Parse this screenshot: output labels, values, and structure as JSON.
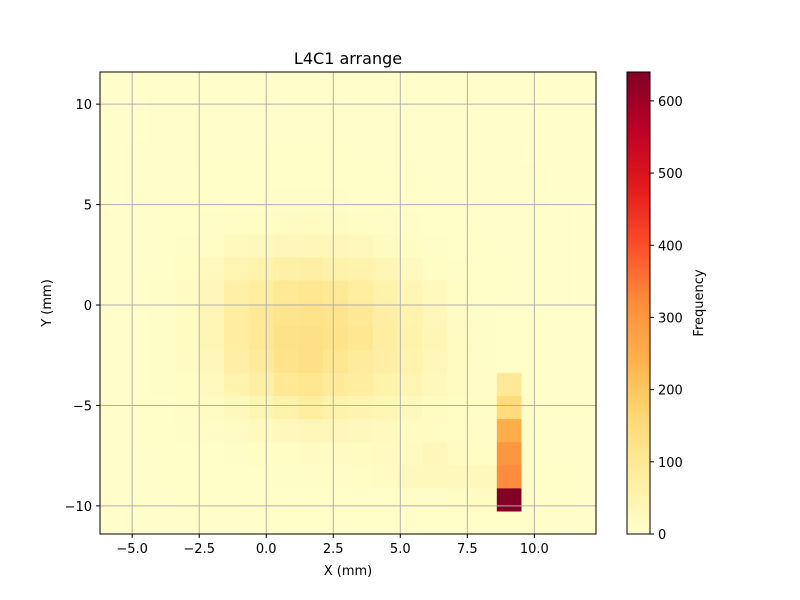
{
  "chart_data": {
    "type": "heatmap",
    "title": "L4C1 arrange",
    "xlabel": "X (mm)",
    "ylabel": "Y (mm)",
    "colorbar_label": "Frequency",
    "xlim": [
      -6.2,
      12.3
    ],
    "ylim": [
      -11.4,
      11.6
    ],
    "xticks": [
      -5.0,
      -2.5,
      0.0,
      2.5,
      5.0,
      7.5,
      10.0
    ],
    "xtick_labels": [
      "−5.0",
      "−2.5",
      "0.0",
      "2.5",
      "5.0",
      "7.5",
      "10.0"
    ],
    "yticks": [
      -10,
      -5,
      0,
      5,
      10
    ],
    "ytick_labels": [
      "−10",
      "−5",
      "0",
      "5",
      "10"
    ],
    "colorbar_range": [
      0,
      640
    ],
    "colorbar_ticks": [
      0,
      100,
      200,
      300,
      400,
      500,
      600
    ],
    "colormap": "YlOrRd",
    "grid": true,
    "bin_x_edges": [
      -6.2,
      -5.28,
      -4.35,
      -3.42,
      -2.5,
      -1.58,
      -0.65,
      0.27,
      1.2,
      2.12,
      3.05,
      3.97,
      4.9,
      5.82,
      6.75,
      7.68,
      8.6,
      9.52,
      10.45,
      11.38,
      12.3
    ],
    "bin_y_edges": [
      -11.4,
      -10.25,
      -9.1,
      -7.95,
      -6.8,
      -5.65,
      -4.5,
      -3.35,
      -2.2,
      -1.05,
      0.1,
      1.25,
      2.4,
      3.55,
      4.7,
      5.85,
      7.0,
      8.15,
      9.3,
      10.45,
      11.6
    ],
    "values": [
      [
        2,
        3,
        4,
        4,
        4,
        4,
        5,
        5,
        5,
        5,
        5,
        5,
        5,
        5,
        5,
        5,
        8,
        6,
        4,
        3
      ],
      [
        3,
        4,
        4,
        5,
        5,
        6,
        6,
        6,
        6,
        7,
        7,
        8,
        10,
        10,
        12,
        16,
        640,
        8,
        5,
        4
      ],
      [
        3,
        4,
        5,
        6,
        6,
        7,
        8,
        9,
        10,
        12,
        14,
        18,
        30,
        30,
        30,
        30,
        320,
        8,
        5,
        3
      ],
      [
        3,
        4,
        6,
        7,
        8,
        10,
        14,
        15,
        16,
        18,
        20,
        22,
        24,
        35,
        20,
        15,
        300,
        7,
        4,
        3
      ],
      [
        3,
        5,
        7,
        9,
        12,
        18,
        25,
        30,
        35,
        35,
        30,
        25,
        20,
        18,
        15,
        12,
        250,
        6,
        4,
        3
      ],
      [
        3,
        5,
        8,
        12,
        18,
        30,
        45,
        60,
        80,
        60,
        50,
        40,
        30,
        20,
        15,
        10,
        150,
        6,
        4,
        3
      ],
      [
        3,
        5,
        9,
        14,
        25,
        55,
        70,
        100,
        110,
        90,
        80,
        60,
        45,
        30,
        20,
        12,
        100,
        5,
        4,
        3
      ],
      [
        3,
        5,
        10,
        18,
        35,
        70,
        90,
        120,
        130,
        110,
        90,
        75,
        55,
        35,
        20,
        10,
        8,
        5,
        4,
        3
      ],
      [
        3,
        5,
        10,
        20,
        40,
        80,
        100,
        125,
        130,
        120,
        110,
        80,
        60,
        40,
        20,
        10,
        6,
        5,
        3,
        3
      ],
      [
        3,
        5,
        10,
        20,
        40,
        80,
        95,
        115,
        120,
        115,
        100,
        75,
        55,
        35,
        18,
        9,
        6,
        5,
        3,
        3
      ],
      [
        3,
        5,
        9,
        18,
        35,
        65,
        80,
        100,
        110,
        100,
        80,
        60,
        40,
        25,
        14,
        8,
        5,
        4,
        3,
        2
      ],
      [
        3,
        4,
        8,
        14,
        25,
        45,
        55,
        65,
        70,
        60,
        55,
        40,
        25,
        15,
        10,
        6,
        5,
        4,
        3,
        2
      ],
      [
        3,
        4,
        6,
        10,
        15,
        25,
        30,
        35,
        38,
        35,
        30,
        22,
        15,
        10,
        6,
        5,
        4,
        3,
        3,
        2
      ],
      [
        3,
        4,
        5,
        7,
        9,
        12,
        15,
        18,
        20,
        18,
        15,
        12,
        9,
        7,
        5,
        4,
        4,
        3,
        3,
        2
      ],
      [
        2,
        3,
        4,
        5,
        6,
        7,
        8,
        9,
        10,
        9,
        8,
        7,
        6,
        5,
        4,
        4,
        3,
        3,
        2,
        2
      ],
      [
        2,
        3,
        4,
        4,
        5,
        5,
        6,
        6,
        6,
        6,
        5,
        5,
        5,
        4,
        4,
        3,
        3,
        3,
        2,
        2
      ],
      [
        2,
        3,
        3,
        4,
        4,
        4,
        5,
        5,
        5,
        5,
        4,
        4,
        4,
        4,
        3,
        3,
        3,
        2,
        2,
        2
      ],
      [
        2,
        2,
        3,
        3,
        4,
        4,
        4,
        4,
        4,
        4,
        4,
        4,
        3,
        3,
        3,
        3,
        2,
        2,
        2,
        2
      ],
      [
        2,
        2,
        3,
        3,
        3,
        3,
        3,
        3,
        3,
        3,
        3,
        3,
        3,
        3,
        3,
        2,
        2,
        2,
        2,
        2
      ],
      [
        2,
        2,
        2,
        2,
        3,
        3,
        3,
        3,
        3,
        3,
        3,
        3,
        3,
        3,
        2,
        2,
        2,
        2,
        2,
        2
      ]
    ]
  }
}
